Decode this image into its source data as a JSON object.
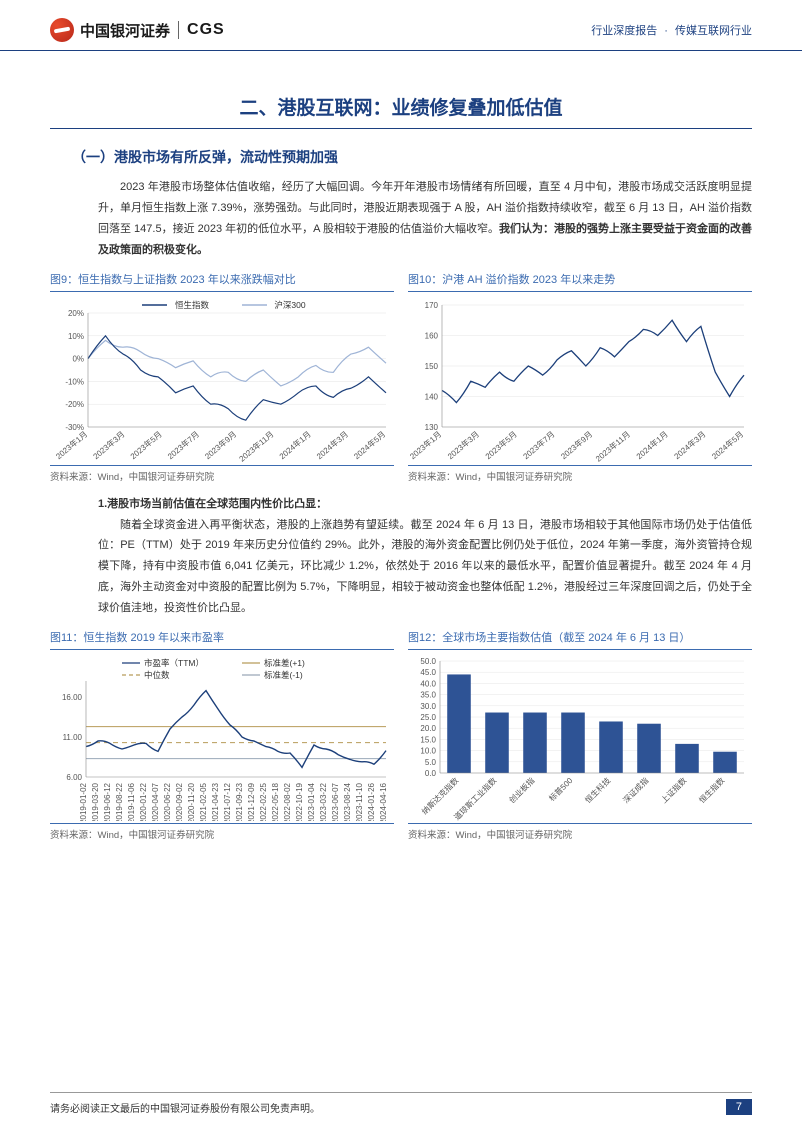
{
  "header": {
    "logo_cn": "中国银河证券",
    "logo_en": "CGS",
    "right_category": "行业深度报告",
    "right_industry": "传媒互联网行业"
  },
  "section": {
    "h1": "二、港股互联网：业绩修复叠加低估值",
    "h2": "（一）港股市场有所反弹，流动性预期加强",
    "p1a": "2023 年港股市场整体估值收缩，经历了大幅回调。今年开年港股市场情绪有所回暖，直至 4 月中旬，港股市场成交活跃度明显提升，单月恒生指数上涨 7.39%，涨势强劲。与此同时，港股近期表现强于 A 股，AH 溢价指数持续收窄，截至 6 月 13 日，AH 溢价指数回落至 147.5，接近 2023 年初的低位水平，A 股相较于港股的估值溢价大幅收窄。",
    "p1b": "我们认为：港股的强势上涨主要受益于资金面的改善及政策面的积极变化。",
    "sub1": "1.港股市场当前估值在全球范围内性价比凸显：",
    "p2": "随着全球资金进入再平衡状态，港股的上涨趋势有望延续。截至 2024 年 6 月 13 日，港股市场相较于其他国际市场仍处于估值低位：PE（TTM）处于 2019 年来历史分位值约 29%。此外，港股的海外资金配置比例仍处于低位，2024 年第一季度，海外资管持仓规模下降，持有中资股市值 6,041 亿美元，环比减少 1.2%，依然处于 2016 年以来的最低水平，配置价值显著提升。截至 2024 年 4 月底，海外主动资金对中资股的配置比例为 5.7%，下降明显，相较于被动资金也整体低配 1.2%，港股经过三年深度回调之后，仍处于全球价值洼地，投资性价比凸显。"
  },
  "chart9": {
    "title": "图9：恒生指数与上证指数 2023 年以来涨跌幅对比",
    "type": "line",
    "legend": [
      "恒生指数",
      "沪深300"
    ],
    "legend_colors": [
      "#1c3f7a",
      "#9fb4d6"
    ],
    "x_labels": [
      "2023年1月",
      "2023年3月",
      "2023年5月",
      "2023年7月",
      "2023年9月",
      "2023年11月",
      "2024年1月",
      "2024年3月",
      "2024年5月"
    ],
    "y_ticks": [
      -30,
      -20,
      -10,
      0,
      10,
      20
    ],
    "ylim": [
      -30,
      20
    ],
    "series": {
      "hsi": [
        0,
        10,
        2,
        -5,
        -8,
        -15,
        -12,
        -20,
        -22,
        -27,
        -18,
        -20,
        -15,
        -12,
        -17,
        -13,
        -8,
        -15
      ],
      "csi": [
        0,
        8,
        5,
        3,
        0,
        -4,
        -1,
        -8,
        -6,
        -10,
        -5,
        -12,
        -8,
        -3,
        -6,
        2,
        5,
        -2
      ]
    },
    "source": "资料来源：Wind，中国银河证券研究院"
  },
  "chart10": {
    "title": "图10：沪港 AH 溢价指数 2023 年以来走势",
    "type": "line",
    "color": "#1c3f7a",
    "x_labels": [
      "2023年1月",
      "2023年3月",
      "2023年5月",
      "2023年7月",
      "2023年9月",
      "2023年11月",
      "2024年1月",
      "2024年3月",
      "2024年5月"
    ],
    "y_ticks": [
      130,
      140,
      150,
      160,
      170
    ],
    "ylim": [
      130,
      170
    ],
    "series": [
      142,
      138,
      145,
      143,
      148,
      145,
      150,
      147,
      152,
      155,
      150,
      156,
      153,
      158,
      162,
      160,
      165,
      158,
      163,
      148,
      140,
      147
    ],
    "source": "资料来源：Wind，中国银河证券研究院"
  },
  "chart11": {
    "title": "图11：恒生指数 2019 年以来市盈率",
    "type": "line",
    "legend": [
      "市盈率（TTM）",
      "标准差(+1)",
      "中位数",
      "标准差(-1)"
    ],
    "legend_colors": [
      "#1c3f7a",
      "#b89c5a",
      "#b89c5a",
      "#9aa8b8"
    ],
    "legend_dash": [
      "solid",
      "solid",
      "dash",
      "solid"
    ],
    "x_labels": [
      "2019-01-02",
      "2019-03-20",
      "2019-06-12",
      "2019-08-22",
      "2019-11-06",
      "2020-01-22",
      "2020-04-07",
      "2020-06-22",
      "2020-09-02",
      "2020-11-20",
      "2021-02-05",
      "2021-04-23",
      "2021-07-12",
      "2021-09-23",
      "2021-12-09",
      "2022-02-25",
      "2022-05-18",
      "2022-08-02",
      "2022-10-19",
      "2023-01-04",
      "2023-03-22",
      "2023-06-07",
      "2023-08-24",
      "2023-11-10",
      "2024-01-26",
      "2024-04-16"
    ],
    "y_ticks": [
      6.0,
      11.0,
      16.0
    ],
    "ylim": [
      6,
      18
    ],
    "ref_lines": {
      "plus1": 12.3,
      "median": 10.3,
      "minus1": 8.3
    },
    "series": [
      9.8,
      10.5,
      10.2,
      9.5,
      10.0,
      10.2,
      9.2,
      12.0,
      13.5,
      15.0,
      16.8,
      14.5,
      12.5,
      11.0,
      10.5,
      9.8,
      9.2,
      9.0,
      7.2,
      10.0,
      9.5,
      8.8,
      8.2,
      7.9,
      7.6,
      9.3
    ],
    "source": "资料来源：Wind，中国银河证券研究院"
  },
  "chart12": {
    "title": "图12：全球市场主要指数估值（截至 2024 年 6 月 13 日）",
    "type": "bar",
    "color": "#2e5395",
    "x_labels": [
      "纳斯达克指数",
      "道琼斯工业指数",
      "创业板指",
      "标普500",
      "恒生科技",
      "深证成指",
      "上证指数",
      "恒生指数"
    ],
    "values": [
      44,
      27,
      27,
      27,
      23,
      22,
      13,
      9.5
    ],
    "y_ticks": [
      0.0,
      5.0,
      10.0,
      15.0,
      20.0,
      25.0,
      30.0,
      35.0,
      40.0,
      45.0,
      50.0
    ],
    "ylim": [
      0,
      50
    ],
    "source": "资料来源：Wind，中国银河证券研究院"
  },
  "footer": {
    "disclaimer": "请务必阅读正文最后的中国银河证券股份有限公司免责声明。",
    "page": "7"
  }
}
